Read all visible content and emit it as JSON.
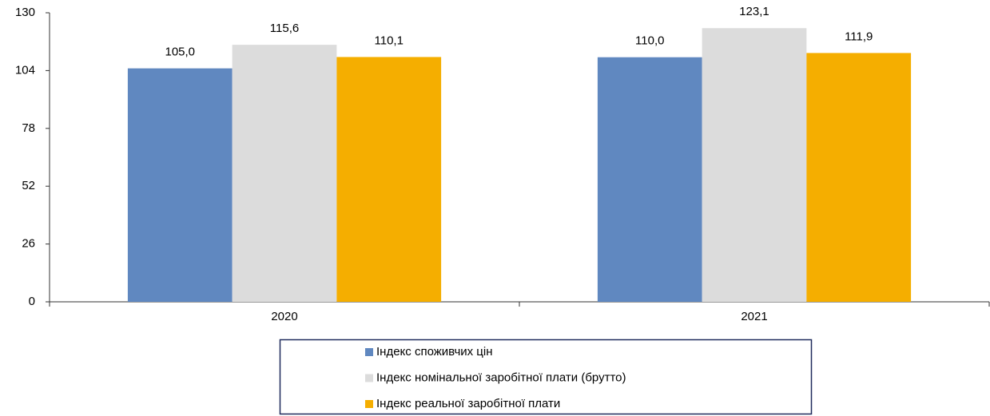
{
  "chart_data": {
    "type": "bar",
    "categories": [
      "2020",
      "2021"
    ],
    "series": [
      {
        "name": "Індекс споживчих цін",
        "color": "#6088c0",
        "values": [
          105.0,
          110.0
        ],
        "value_labels": [
          "105,0",
          "110,0"
        ]
      },
      {
        "name": "Індекс номінальної заробітної плати (брутто)",
        "color": "#dcdcdc",
        "values": [
          115.6,
          123.1
        ],
        "value_labels": [
          "115,6",
          "123,1"
        ]
      },
      {
        "name": "Індекс реальної заробітної плати",
        "color": "#f5ae00",
        "values": [
          110.1,
          111.9
        ],
        "value_labels": [
          "110,1",
          "111,9"
        ]
      }
    ],
    "ylim": [
      0,
      130
    ],
    "yticks": [
      0,
      26,
      52,
      78,
      104,
      130
    ],
    "grid": false,
    "legend": "bottom"
  }
}
